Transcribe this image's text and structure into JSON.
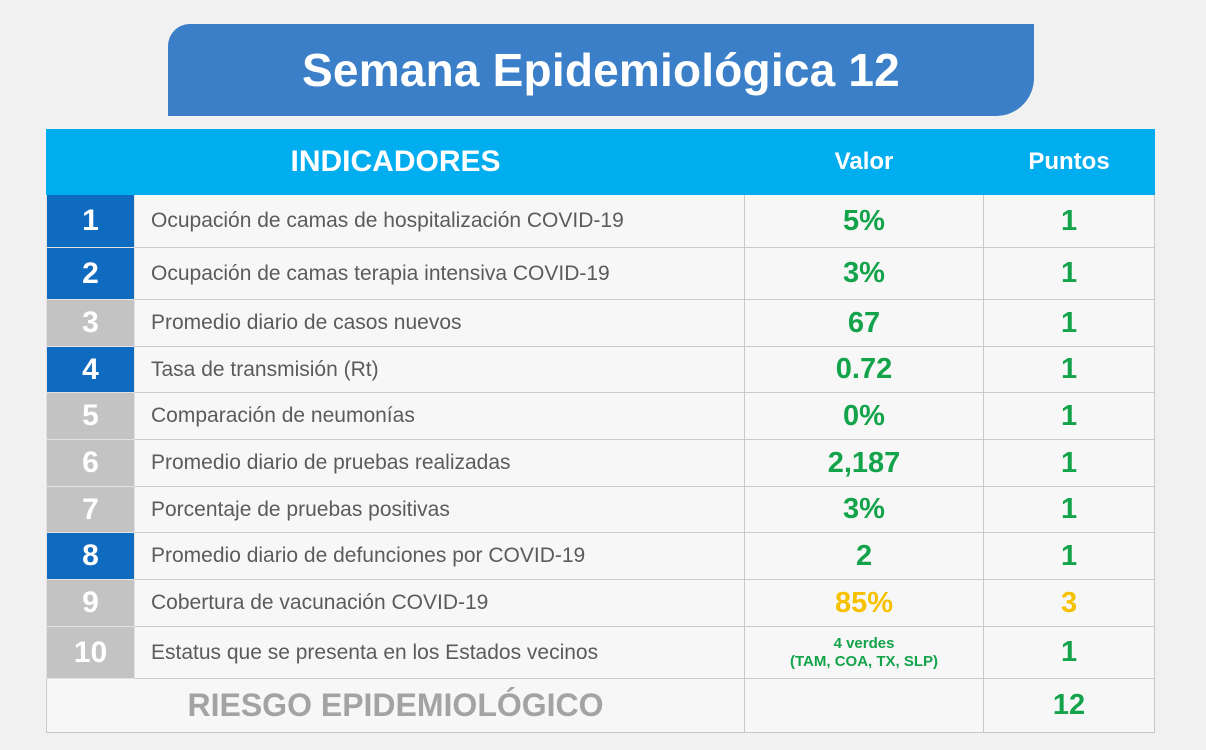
{
  "title": "Semana Epidemiológica 12",
  "header": {
    "indicadores": "INDICADORES",
    "valor": "Valor",
    "puntos": "Puntos"
  },
  "rows": [
    {
      "num": "1",
      "label": "Ocupación de camas de hospitalización COVID-19",
      "value": "5%",
      "points": "1"
    },
    {
      "num": "2",
      "label": "Ocupación de camas terapia intensiva COVID-19",
      "value": "3%",
      "points": "1"
    },
    {
      "num": "3",
      "label": "Promedio diario de casos nuevos",
      "value": "67",
      "points": "1"
    },
    {
      "num": "4",
      "label": "Tasa de transmisión (Rt)",
      "value": "0.72",
      "points": "1"
    },
    {
      "num": "5",
      "label": "Comparación de neumonías",
      "value": "0%",
      "points": "1"
    },
    {
      "num": "6",
      "label": "Promedio diario de pruebas realizadas",
      "value": "2,187",
      "points": "1"
    },
    {
      "num": "7",
      "label": "Porcentaje de pruebas positivas",
      "value": "3%",
      "points": "1"
    },
    {
      "num": "8",
      "label": "Promedio diario de defunciones por COVID-19",
      "value": "2",
      "points": "1"
    },
    {
      "num": "9",
      "label": "Cobertura de vacunación COVID-19",
      "value": "85%",
      "points": "3"
    },
    {
      "num": "10",
      "label": "Estatus que se presenta en los Estados vecinos",
      "value_line1": "4 verdes",
      "value_line2": "(TAM, COA, TX, SLP)",
      "points": "1"
    }
  ],
  "footer": {
    "label": "RIESGO EPIDEMIOLÓGICO",
    "value": "",
    "total": "12"
  },
  "colors": {
    "banner": "#3a7fc8",
    "header": "#00adef",
    "number_blue": "#0f6bbf",
    "number_gray": "#c3c3c3",
    "green": "#13a34a",
    "yellow": "#f6c200"
  }
}
